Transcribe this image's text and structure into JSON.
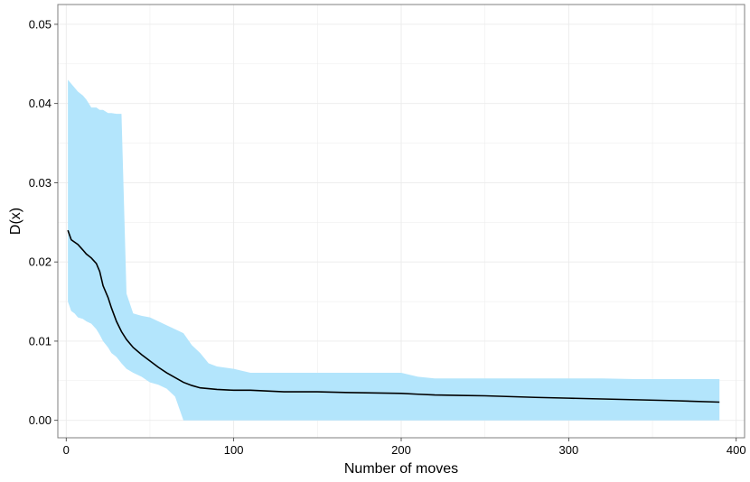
{
  "chart_data": {
    "type": "line",
    "title": "",
    "xlabel": "Number of moves",
    "ylabel": "D(x)",
    "xlim": [
      -5,
      405
    ],
    "ylim": [
      -0.0022,
      0.0525
    ],
    "x_ticks": [
      0,
      100,
      200,
      300,
      400
    ],
    "x_tick_labels": [
      "0",
      "100",
      "200",
      "300",
      "400"
    ],
    "y_ticks": [
      0.0,
      0.01,
      0.02,
      0.03,
      0.04,
      0.05
    ],
    "y_tick_labels": [
      "0.00",
      "0.01",
      "0.02",
      "0.03",
      "0.04",
      "0.05"
    ],
    "grid": true,
    "legend": "none",
    "colors": {
      "ribbon": "#b3e5fc",
      "line": "#000000",
      "grid": "#ebebeb",
      "border": "#7f7f7f"
    },
    "series": [
      {
        "x": [
          1,
          3,
          5,
          7,
          10,
          12,
          15,
          18,
          20,
          22,
          25,
          27,
          30,
          33,
          36,
          40,
          45,
          50,
          55,
          60,
          65,
          70,
          75,
          80,
          85,
          90,
          100,
          110,
          120,
          130,
          150,
          170,
          200,
          210,
          220,
          250,
          265,
          280,
          300,
          320,
          340,
          360,
          390
        ],
        "y": [
          0.024,
          0.0228,
          0.0225,
          0.0222,
          0.0215,
          0.021,
          0.0205,
          0.0198,
          0.0188,
          0.017,
          0.0155,
          0.0142,
          0.0125,
          0.0112,
          0.0102,
          0.0092,
          0.0083,
          0.0075,
          0.0067,
          0.006,
          0.0054,
          0.0048,
          0.0044,
          0.0041,
          0.004,
          0.0039,
          0.0038,
          0.0038,
          0.0037,
          0.0036,
          0.0036,
          0.0035,
          0.0034,
          0.0033,
          0.0032,
          0.0031,
          0.003,
          0.0029,
          0.0028,
          0.0027,
          0.0026,
          0.0025,
          0.0023
        ],
        "upper": [
          0.043,
          0.0425,
          0.042,
          0.0415,
          0.041,
          0.0405,
          0.0395,
          0.0395,
          0.0392,
          0.0392,
          0.0388,
          0.0388,
          0.0387,
          0.0387,
          0.016,
          0.0135,
          0.0132,
          0.013,
          0.0125,
          0.012,
          0.0115,
          0.011,
          0.0095,
          0.0085,
          0.0072,
          0.0068,
          0.0065,
          0.006,
          0.006,
          0.006,
          0.006,
          0.006,
          0.006,
          0.0055,
          0.0053,
          0.0053,
          0.0053,
          0.0053,
          0.0053,
          0.0053,
          0.0052,
          0.0052,
          0.0052
        ],
        "lower": [
          0.015,
          0.0138,
          0.0135,
          0.013,
          0.0128,
          0.0125,
          0.0122,
          0.0115,
          0.0108,
          0.01,
          0.0092,
          0.0085,
          0.008,
          0.0072,
          0.0065,
          0.006,
          0.0055,
          0.0048,
          0.0045,
          0.004,
          0.003,
          0.0,
          0.0,
          0.0,
          0.0,
          0.0,
          0.0,
          0.0,
          0.0,
          0.0,
          0.0,
          0.0,
          0.0,
          0.0,
          0.0,
          0.0,
          0.0,
          0.0,
          0.0,
          0.0,
          0.0,
          0.0,
          0.0
        ]
      }
    ]
  }
}
